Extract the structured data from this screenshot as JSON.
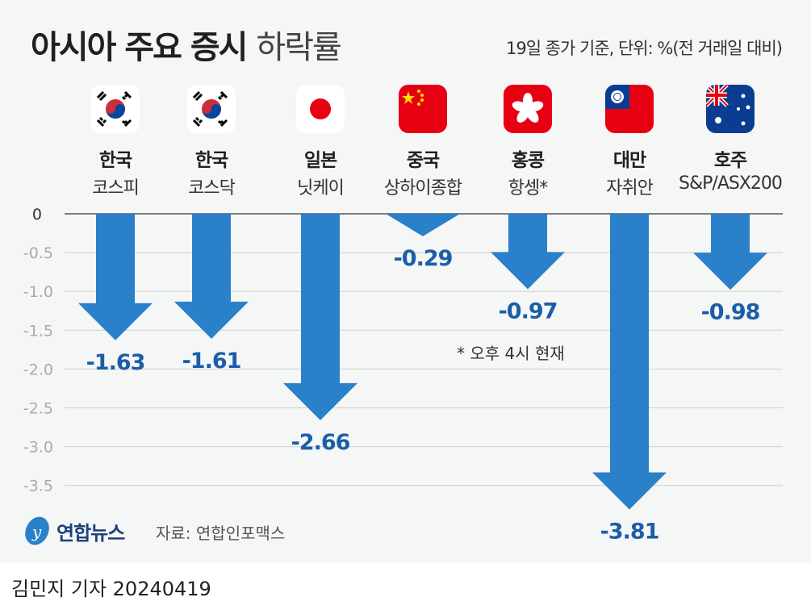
{
  "header": {
    "title_bold": "아시아 주요 증시",
    "title_light": "하락률",
    "unit_note": "19일 종가 기준, 단위: %(전 거래일 대비)"
  },
  "colors": {
    "arrow": "#2a80c9",
    "label": "#1b5ea8",
    "grid": "#cfcfcf"
  },
  "chart_data": {
    "type": "bar",
    "title": "아시아 주요 증시 하락률",
    "ylabel": "%",
    "ylim": [
      -3.5,
      0
    ],
    "yticks": [
      "0",
      "-0.5",
      "-1.0",
      "-1.5",
      "-2.0",
      "-2.5",
      "-3.0",
      "-3.5"
    ],
    "ytick_values": [
      0,
      -0.5,
      -1,
      -1.5,
      -2,
      -2.5,
      -3,
      -3.5
    ],
    "categories": [
      {
        "country": "한국",
        "index": "코스피",
        "flag": "kr"
      },
      {
        "country": "한국",
        "index": "코스닥",
        "flag": "kr"
      },
      {
        "country": "일본",
        "index": "닛케이",
        "flag": "jp"
      },
      {
        "country": "중국",
        "index": "상하이종합",
        "flag": "cn"
      },
      {
        "country": "홍콩",
        "index": "항셍*",
        "flag": "hk"
      },
      {
        "country": "대만",
        "index": "자취안",
        "flag": "tw"
      },
      {
        "country": "호주",
        "index": "S&P/ASX200",
        "flag": "au"
      }
    ],
    "values": [
      -1.63,
      -1.61,
      -2.66,
      -0.29,
      -0.97,
      -3.81,
      -0.98
    ],
    "value_labels": [
      "-1.63",
      "-1.61",
      "-2.66",
      "-0.29",
      "-0.97",
      "-3.81",
      "-0.98"
    ],
    "annotation": "* 오후 4시 현재",
    "grid": true
  },
  "footer": {
    "logo": "연합뉴스",
    "source": "자료: 연합인포맥스",
    "byline": "김민지 기자  20240419"
  }
}
